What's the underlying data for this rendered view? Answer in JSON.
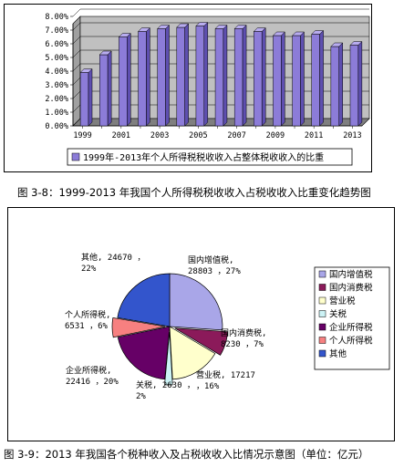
{
  "figure1": {
    "caption": "图 3-8：1999-2013 年我国个人所得税税收收入占税收收入比重变化趋势图",
    "chart_data": {
      "type": "bar",
      "categories": [
        "1999",
        "2000",
        "2001",
        "2002",
        "2003",
        "2004",
        "2005",
        "2006",
        "2007",
        "2008",
        "2009",
        "2010",
        "2011",
        "2012",
        "2013"
      ],
      "x_tick_labels": [
        "1999",
        "2001",
        "2003",
        "2005",
        "2007",
        "2009",
        "2011",
        "2013"
      ],
      "series": [
        {
          "name": "1999年-2013年个人所得税税收收入占整体税收收入的比重",
          "values": [
            3.9,
            5.2,
            6.5,
            6.9,
            7.1,
            7.2,
            7.3,
            7.1,
            7.1,
            6.9,
            6.6,
            6.6,
            6.7,
            5.8,
            5.9
          ]
        }
      ],
      "ylim": [
        0,
        8
      ],
      "y_ticks": [
        "0.00%",
        "1.00%",
        "2.00%",
        "3.00%",
        "4.00%",
        "5.00%",
        "6.00%",
        "7.00%",
        "8.00%"
      ],
      "grid": true,
      "legend_position": "bottom",
      "colors": {
        "bar": "#8C7CD8",
        "bar_dark": "#5E4FB0",
        "bar_light": "#B8ACEF",
        "plot_bg": "#C0C0C0",
        "plot_side": "#A0A0A0"
      }
    }
  },
  "figure2": {
    "caption": "图 3-9：2013 年我国各个税种收入及占税收收入比情况示意图（单位：亿元）",
    "chart_data": {
      "type": "pie",
      "slices": [
        {
          "name": "国内增值税",
          "value": 28803,
          "percent": "27%",
          "label_line1": "国内增值税,",
          "label_line2": "28803 ，27%",
          "color": "#A9A6E8"
        },
        {
          "name": "国内消费税",
          "value": 8230,
          "percent": "7%",
          "label_line1": "国内消费税,",
          "label_line2": "8230 ，7%",
          "color": "#8B1A5A"
        },
        {
          "name": "营业税",
          "value": 17217,
          "percent": "16%",
          "label_line1": "营业税, 17217",
          "label_line2": "，16%",
          "color": "#FFFFCC"
        },
        {
          "name": "关税",
          "value": 2630,
          "percent": "2%",
          "label_line1": "关税, 2630 ，",
          "label_line2": "2%",
          "color": "#CCF2F5"
        },
        {
          "name": "企业所得税",
          "value": 22416,
          "percent": "20%",
          "label_line1": "企业所得税,",
          "label_line2": "22416 ，20%",
          "color": "#660066"
        },
        {
          "name": "个人所得税",
          "value": 6531,
          "percent": "6%",
          "label_line1": "个人所得税,",
          "label_line2": "6531 ，6%",
          "color": "#F78080"
        },
        {
          "name": "其他",
          "value": 24670,
          "percent": "22%",
          "label_line1": "其他, 24670 ，",
          "label_line2": "22%",
          "color": "#3355CC"
        }
      ],
      "legend_position": "right"
    }
  }
}
